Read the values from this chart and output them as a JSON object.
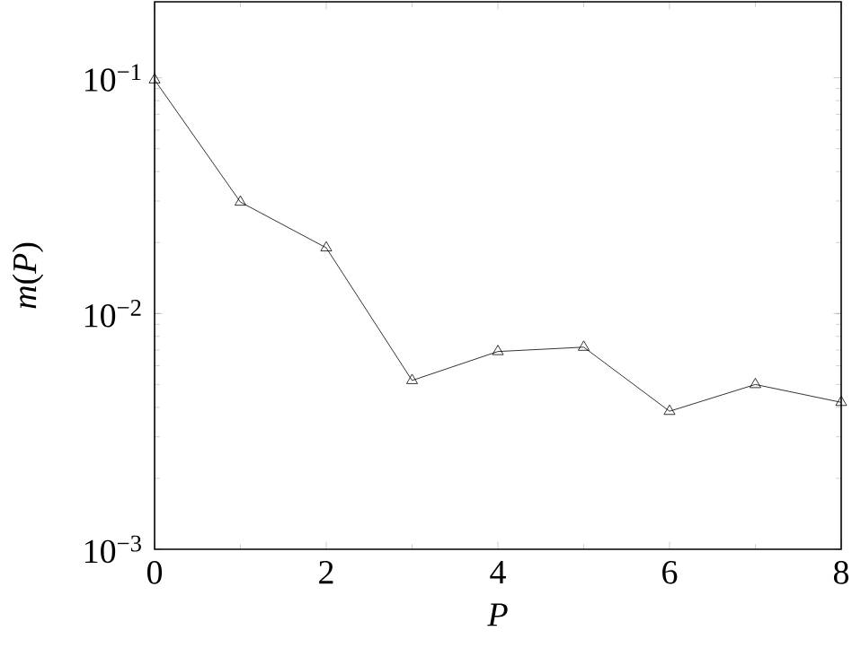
{
  "chart_data": {
    "type": "line",
    "xlabel": "P",
    "ylabel": "*m*(*P*)",
    "x": [
      0,
      1,
      2,
      3,
      4,
      5,
      6,
      7,
      8
    ],
    "series": [
      {
        "color": "#000000",
        "values": [
          0.098,
          0.0297,
          0.019,
          0.0052,
          0.0069,
          0.0072,
          0.00385,
          0.005,
          0.0042
        ]
      }
    ],
    "xlim": [
      0,
      8
    ],
    "xticks": [
      0,
      2,
      4,
      6,
      8
    ],
    "ylim": [
      0.001,
      0.21
    ],
    "yticks": [
      {
        "value": 0.001,
        "label": "10$^{−3}$"
      },
      {
        "value": 0.01,
        "label": "10$^{−2}$"
      },
      {
        "value": 0.1,
        "label": "10$^{−1}$"
      }
    ],
    "log": "y",
    "grid": false,
    "marker": "triangle",
    "line_style": "solid"
  }
}
